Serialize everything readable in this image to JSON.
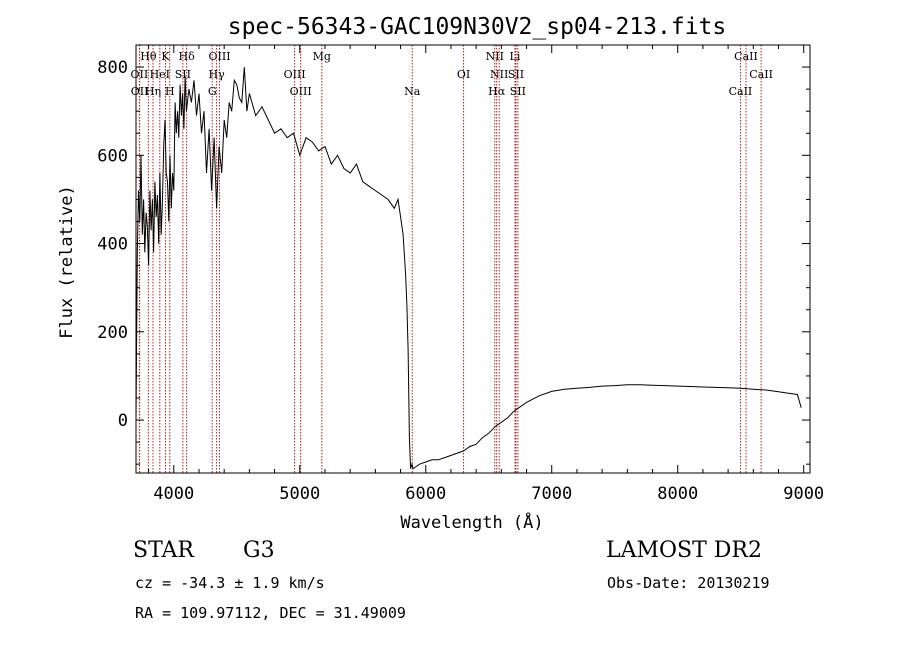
{
  "chart_data": {
    "type": "line",
    "title": "spec-56343-GAC109N30V2_sp04-213.fits",
    "xlabel": "Wavelength (Å)",
    "ylabel": "Flux (relative)",
    "xlim": [
      3700,
      9050
    ],
    "ylim": [
      -120,
      850
    ],
    "x_ticks": [
      4000,
      5000,
      6000,
      7000,
      8000,
      9000
    ],
    "y_ticks": [
      0,
      200,
      400,
      600,
      800
    ],
    "x_tick_labels": [
      "4000",
      "5000",
      "6000",
      "7000",
      "8000",
      "9000"
    ],
    "y_tick_labels": [
      "0",
      "200",
      "400",
      "600",
      "800"
    ],
    "series": [
      {
        "values_x": [
          3700,
          3710,
          3720,
          3730,
          3740,
          3750,
          3760,
          3770,
          3780,
          3790,
          3800,
          3810,
          3820,
          3830,
          3840,
          3850,
          3860,
          3870,
          3880,
          3890,
          3900,
          3910,
          3920,
          3930,
          3940,
          3950,
          3960,
          3970,
          3980,
          3990,
          4000,
          4010,
          4020,
          4030,
          4040,
          4050,
          4060,
          4070,
          4080,
          4090,
          4100,
          4120,
          4140,
          4160,
          4180,
          4200,
          4220,
          4240,
          4260,
          4280,
          4300,
          4320,
          4340,
          4360,
          4380,
          4400,
          4420,
          4440,
          4460,
          4480,
          4500,
          4520,
          4540,
          4560,
          4580,
          4600,
          4650,
          4700,
          4750,
          4800,
          4850,
          4900,
          4950,
          5000,
          5050,
          5100,
          5150,
          5200,
          5250,
          5300,
          5350,
          5400,
          5450,
          5500,
          5550,
          5600,
          5650,
          5700,
          5750,
          5780,
          5800,
          5820,
          5840,
          5850,
          5860,
          5870,
          5880,
          5890,
          5900,
          5950,
          6000,
          6050,
          6100,
          6150,
          6200,
          6250,
          6300,
          6350,
          6400,
          6450,
          6500,
          6550,
          6600,
          6650,
          6700,
          6750,
          6800,
          6900,
          7000,
          7100,
          7200,
          7300,
          7400,
          7500,
          7600,
          7700,
          7800,
          7900,
          8000,
          8100,
          8200,
          8300,
          8400,
          8500,
          8600,
          8700,
          8800,
          8900,
          8950,
          8980
        ],
        "values_y": [
          0,
          380,
          520,
          450,
          600,
          420,
          500,
          380,
          470,
          440,
          350,
          520,
          430,
          500,
          380,
          540,
          460,
          510,
          400,
          560,
          420,
          500,
          620,
          680,
          560,
          540,
          450,
          600,
          480,
          560,
          520,
          720,
          650,
          700,
          640,
          760,
          690,
          740,
          660,
          780,
          700,
          750,
          720,
          770,
          690,
          740,
          650,
          700,
          560,
          660,
          520,
          640,
          480,
          620,
          560,
          680,
          640,
          720,
          700,
          770,
          760,
          730,
          720,
          800,
          700,
          740,
          690,
          710,
          680,
          650,
          660,
          640,
          650,
          600,
          640,
          630,
          610,
          620,
          580,
          600,
          570,
          560,
          580,
          540,
          530,
          520,
          510,
          500,
          480,
          500,
          460,
          420,
          330,
          260,
          160,
          -40,
          -110,
          -100,
          -110,
          -100,
          -95,
          -90,
          -90,
          -85,
          -80,
          -75,
          -70,
          -60,
          -55,
          -40,
          -30,
          -15,
          -5,
          5,
          20,
          30,
          40,
          55,
          65,
          70,
          72,
          74,
          77,
          78,
          80,
          80,
          79,
          78,
          77,
          76,
          75,
          74,
          73,
          72,
          70,
          68,
          64,
          60,
          58,
          28
        ]
      }
    ],
    "lines": [
      {
        "label": "Hθ",
        "x": 3798,
        "row": 0
      },
      {
        "label": "K",
        "x": 3934,
        "row": 0
      },
      {
        "label": "Hδ",
        "x": 4102,
        "row": 0
      },
      {
        "label": "OIII",
        "x": 4363,
        "row": 0
      },
      {
        "label": "Mg",
        "x": 5175,
        "row": 0
      },
      {
        "label": "NII",
        "x": 6548,
        "row": 0
      },
      {
        "label": "Li",
        "x": 6708,
        "row": 0
      },
      {
        "label": "CaII",
        "x": 8542,
        "row": 0
      },
      {
        "label": "OII",
        "x": 3727,
        "row": 1
      },
      {
        "label": "HeI",
        "x": 3889,
        "row": 1
      },
      {
        "label": "SII",
        "x": 4072,
        "row": 1
      },
      {
        "label": "Hγ",
        "x": 4340,
        "row": 1
      },
      {
        "label": "OIII",
        "x": 4959,
        "row": 1
      },
      {
        "label": "OI",
        "x": 6300,
        "row": 1
      },
      {
        "label": "NII",
        "x": 6583,
        "row": 1
      },
      {
        "label": "SII",
        "x": 6716,
        "row": 1
      },
      {
        "label": "CaII",
        "x": 8662,
        "row": 1
      },
      {
        "label": "OII",
        "x": 3729,
        "row": 2
      },
      {
        "label": "Hη",
        "x": 3835,
        "row": 2
      },
      {
        "label": "H",
        "x": 3968,
        "row": 2
      },
      {
        "label": "G",
        "x": 4305,
        "row": 2
      },
      {
        "label": "OIII",
        "x": 5007,
        "row": 2
      },
      {
        "label": "Na",
        "x": 5893,
        "row": 2
      },
      {
        "label": "Hα",
        "x": 6563,
        "row": 2
      },
      {
        "label": "SII",
        "x": 6731,
        "row": 2
      },
      {
        "label": "CaII",
        "x": 8498,
        "row": 2
      }
    ]
  },
  "info": {
    "class_label": "STAR",
    "subclass": "G3",
    "survey": "LAMOST DR2",
    "redshift": "cz = -34.3 ± 1.9 km/s",
    "obs_date": "Obs-Date: 20130219",
    "coords": "RA = 109.97112, DEC =  31.49009"
  }
}
